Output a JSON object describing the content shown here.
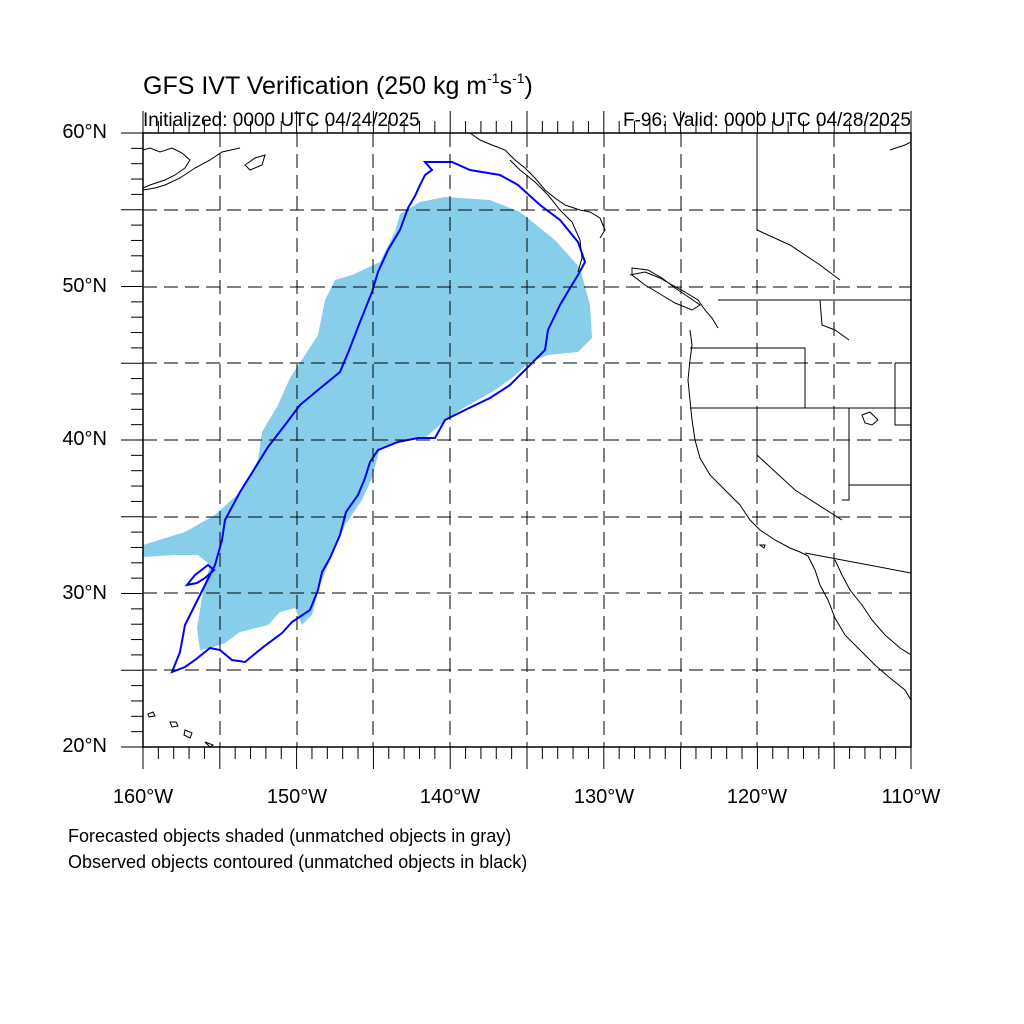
{
  "title": {
    "main": "GFS IVT Verification (250 kg m",
    "exp1": "-1",
    "mid": "s",
    "exp2": "-1",
    "end": ")"
  },
  "init_label": "Initialized: 0000 UTC 04/24/2025",
  "valid_label": "F-96: Valid: 0000 UTC 04/28/2025",
  "lat_labels": [
    "60°N",
    "50°N",
    "40°N",
    "30°N",
    "20°N"
  ],
  "lon_labels": [
    "160°W",
    "150°W",
    "140°W",
    "130°W",
    "120°W",
    "110°W"
  ],
  "notes": [
    "Forecasted objects shaded (unmatched objects in gray)",
    "Observed objects contoured (unmatched objects in black)"
  ],
  "map": {
    "lon_range": [
      -160,
      -110
    ],
    "lat_range": [
      20,
      60
    ],
    "forecast_fill_color": "#87ceeb",
    "observed_contour_color": "#0000ff",
    "gridlines": "dashed, every 5 degrees"
  }
}
